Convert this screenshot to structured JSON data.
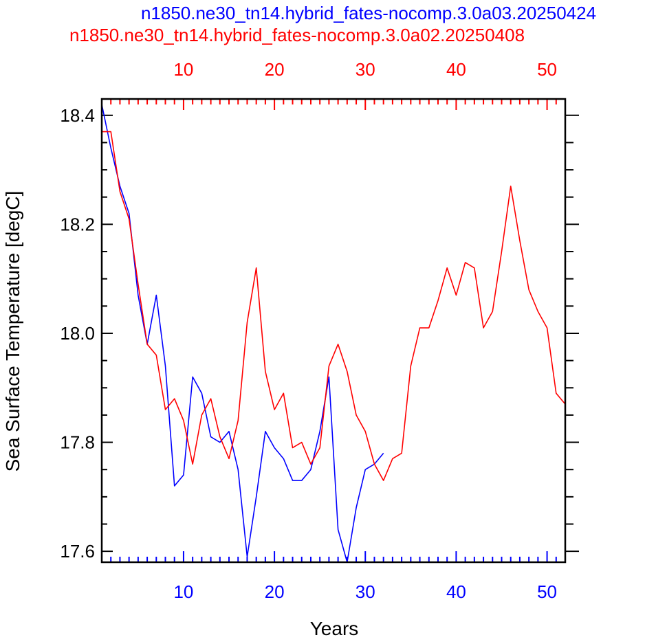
{
  "chart_data": {
    "type": "line",
    "title_lines": [
      {
        "text": "n1850.ne30_tn14.hybrid_fates-nocomp.3.0a03.20250424",
        "color": "#0000ff"
      },
      {
        "text": "n1850.ne30_tn14.hybrid_fates-nocomp.3.0a02.20250408",
        "color": "#ff0000"
      }
    ],
    "xlabel": "Years",
    "ylabel": "Sea Surface Temperature [degC]",
    "xlim": [
      1,
      52
    ],
    "ylim": [
      17.58,
      18.43
    ],
    "x_ticks_major": [
      10,
      20,
      30,
      40,
      50
    ],
    "y_ticks_major": [
      17.6,
      17.8,
      18.0,
      18.2,
      18.4
    ],
    "y_tick_labels": [
      "17.6",
      "17.8",
      "18.0",
      "18.2",
      "18.4"
    ],
    "bottom_axis_color": "#0000ff",
    "top_axis_color": "#ff0000",
    "grid": false,
    "series": [
      {
        "color": "#0000ff",
        "axis": "bottom",
        "x": [
          1,
          2,
          3,
          4,
          5,
          6,
          7,
          8,
          9,
          10,
          11,
          12,
          13,
          14,
          15,
          16,
          17,
          18,
          19,
          20,
          21,
          22,
          23,
          24,
          25,
          26,
          27,
          28,
          29,
          30,
          31,
          32
        ],
        "values": [
          18.42,
          18.34,
          18.27,
          18.22,
          18.07,
          17.98,
          18.07,
          17.94,
          17.72,
          17.74,
          17.92,
          17.89,
          17.81,
          17.8,
          17.82,
          17.75,
          17.59,
          17.7,
          17.82,
          17.79,
          17.77,
          17.73,
          17.73,
          17.75,
          17.82,
          17.92,
          17.64,
          17.58,
          17.68,
          17.75,
          17.76,
          17.78
        ]
      },
      {
        "color": "#ff0000",
        "axis": "top",
        "x": [
          1,
          2,
          3,
          4,
          5,
          6,
          7,
          8,
          9,
          10,
          11,
          12,
          13,
          14,
          15,
          16,
          17,
          18,
          19,
          20,
          21,
          22,
          23,
          24,
          25,
          26,
          27,
          28,
          29,
          30,
          31,
          32,
          33,
          34,
          35,
          36,
          37,
          38,
          39,
          40,
          41,
          42,
          43,
          44,
          45,
          46,
          47,
          48,
          49,
          50,
          51,
          52
        ],
        "values": [
          18.37,
          18.37,
          18.26,
          18.21,
          18.09,
          17.98,
          17.96,
          17.86,
          17.88,
          17.84,
          17.76,
          17.85,
          17.88,
          17.81,
          17.77,
          17.84,
          18.02,
          18.12,
          17.93,
          17.86,
          17.89,
          17.79,
          17.8,
          17.76,
          17.79,
          17.94,
          17.98,
          17.93,
          17.85,
          17.82,
          17.76,
          17.73,
          17.77,
          17.78,
          17.94,
          18.01,
          18.01,
          18.06,
          18.12,
          18.07,
          18.13,
          18.12,
          18.01,
          18.04,
          18.15,
          18.27,
          18.17,
          18.08,
          18.04,
          18.01,
          17.89,
          17.87
        ]
      }
    ]
  }
}
